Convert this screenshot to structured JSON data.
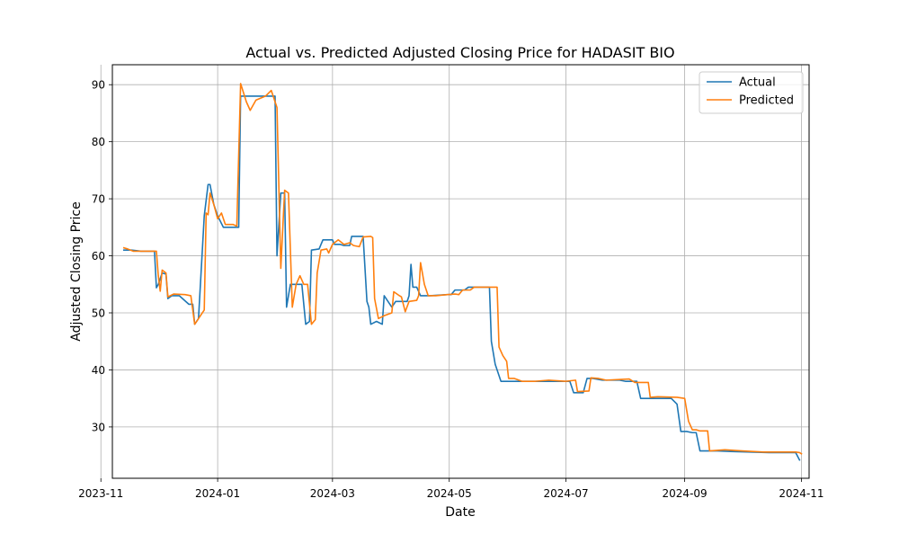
{
  "chart_data": {
    "type": "line",
    "title": "Actual vs. Predicted Adjusted Closing Price for HADASIT BIO",
    "xlabel": "Date",
    "ylabel": "Adjusted Closing Price",
    "xlim": [
      "2023-11-07",
      "2024-11-05"
    ],
    "ylim": [
      21,
      93.5
    ],
    "x_ticks": [
      "2023-11",
      "2024-01",
      "2024-03",
      "2024-05",
      "2024-07",
      "2024-09",
      "2024-11"
    ],
    "y_ticks": [
      30,
      40,
      50,
      60,
      70,
      80,
      90
    ],
    "grid": true,
    "legend_position": "top-right",
    "series": [
      {
        "name": "Actual",
        "color": "#1f77b4",
        "points": [
          [
            "2023-11-13",
            61.0
          ],
          [
            "2023-11-17",
            61.0
          ],
          [
            "2023-11-22",
            60.8
          ],
          [
            "2023-11-29",
            60.8
          ],
          [
            "2023-11-30",
            54.4
          ],
          [
            "2023-12-01",
            55.0
          ],
          [
            "2023-12-03",
            57.0
          ],
          [
            "2023-12-05",
            56.8
          ],
          [
            "2023-12-06",
            52.5
          ],
          [
            "2023-12-08",
            53.0
          ],
          [
            "2023-12-12",
            53.0
          ],
          [
            "2023-12-17",
            51.5
          ],
          [
            "2023-12-19",
            51.5
          ],
          [
            "2023-12-20",
            48.0
          ],
          [
            "2023-12-22",
            49.0
          ],
          [
            "2023-12-25",
            67.0
          ],
          [
            "2023-12-27",
            72.5
          ],
          [
            "2023-12-28",
            72.5
          ],
          [
            "2023-12-30",
            69.0
          ],
          [
            "2024-01-01",
            67.0
          ],
          [
            "2024-01-04",
            65.0
          ],
          [
            "2024-01-12",
            65.0
          ],
          [
            "2024-01-13",
            88.0
          ],
          [
            "2024-01-31",
            88.0
          ],
          [
            "2024-02-01",
            60.0
          ],
          [
            "2024-02-03",
            71.0
          ],
          [
            "2024-02-05",
            71.0
          ],
          [
            "2024-02-06",
            51.0
          ],
          [
            "2024-02-08",
            55.0
          ],
          [
            "2024-02-10",
            55.0
          ],
          [
            "2024-02-14",
            55.0
          ],
          [
            "2024-02-16",
            48.0
          ],
          [
            "2024-02-18",
            48.5
          ],
          [
            "2024-02-19",
            61.0
          ],
          [
            "2024-02-23",
            61.2
          ],
          [
            "2024-02-25",
            62.8
          ],
          [
            "2024-03-01",
            62.8
          ],
          [
            "2024-03-02",
            62.0
          ],
          [
            "2024-03-05",
            62.0
          ],
          [
            "2024-03-07",
            61.8
          ],
          [
            "2024-03-10",
            61.8
          ],
          [
            "2024-03-11",
            63.4
          ],
          [
            "2024-03-17",
            63.4
          ],
          [
            "2024-03-19",
            52.0
          ],
          [
            "2024-03-20",
            51.0
          ],
          [
            "2024-03-21",
            48.0
          ],
          [
            "2024-03-24",
            48.5
          ],
          [
            "2024-03-27",
            48.0
          ],
          [
            "2024-03-28",
            53.0
          ],
          [
            "2024-04-01",
            51.0
          ],
          [
            "2024-04-03",
            52.0
          ],
          [
            "2024-04-09",
            52.0
          ],
          [
            "2024-04-10",
            53.0
          ],
          [
            "2024-04-11",
            58.5
          ],
          [
            "2024-04-12",
            54.5
          ],
          [
            "2024-04-14",
            54.5
          ],
          [
            "2024-04-16",
            53.0
          ],
          [
            "2024-04-21",
            53.0
          ],
          [
            "2024-04-30",
            53.2
          ],
          [
            "2024-05-02",
            53.2
          ],
          [
            "2024-05-04",
            54.0
          ],
          [
            "2024-05-09",
            54.0
          ],
          [
            "2024-05-11",
            54.5
          ],
          [
            "2024-05-22",
            54.5
          ],
          [
            "2024-05-23",
            45.0
          ],
          [
            "2024-05-25",
            41.0
          ],
          [
            "2024-05-28",
            38.0
          ],
          [
            "2024-06-02",
            38.0
          ],
          [
            "2024-06-07",
            38.0
          ],
          [
            "2024-06-15",
            38.0
          ],
          [
            "2024-06-30",
            38.0
          ],
          [
            "2024-07-03",
            38.0
          ],
          [
            "2024-07-05",
            36.0
          ],
          [
            "2024-07-10",
            36.0
          ],
          [
            "2024-07-12",
            38.5
          ],
          [
            "2024-07-15",
            38.5
          ],
          [
            "2024-07-20",
            38.2
          ],
          [
            "2024-07-29",
            38.2
          ],
          [
            "2024-08-01",
            38.0
          ],
          [
            "2024-08-07",
            38.0
          ],
          [
            "2024-08-09",
            35.0
          ],
          [
            "2024-08-25",
            35.0
          ],
          [
            "2024-08-28",
            34.0
          ],
          [
            "2024-08-30",
            29.2
          ],
          [
            "2024-09-02",
            29.2
          ],
          [
            "2024-09-05",
            29.0
          ],
          [
            "2024-09-07",
            29.0
          ],
          [
            "2024-09-09",
            25.8
          ],
          [
            "2024-09-18",
            25.8
          ],
          [
            "2024-09-25",
            25.7
          ],
          [
            "2024-10-15",
            25.5
          ],
          [
            "2024-10-29",
            25.5
          ],
          [
            "2024-10-31",
            24.2
          ]
        ]
      },
      {
        "name": "Predicted",
        "color": "#ff7f0e",
        "points": [
          [
            "2023-11-13",
            61.4
          ],
          [
            "2023-11-15",
            61.2
          ],
          [
            "2023-11-18",
            60.8
          ],
          [
            "2023-11-24",
            60.8
          ],
          [
            "2023-11-30",
            60.8
          ],
          [
            "2023-12-01",
            56.5
          ],
          [
            "2023-12-02",
            53.8
          ],
          [
            "2023-12-03",
            57.5
          ],
          [
            "2023-12-05",
            57.0
          ],
          [
            "2023-12-06",
            52.8
          ],
          [
            "2023-12-09",
            53.3
          ],
          [
            "2023-12-15",
            53.2
          ],
          [
            "2023-12-18",
            53.0
          ],
          [
            "2023-12-20",
            48.0
          ],
          [
            "2023-12-21",
            48.5
          ],
          [
            "2023-12-25",
            50.5
          ],
          [
            "2023-12-26",
            67.5
          ],
          [
            "2023-12-27",
            67.2
          ],
          [
            "2023-12-28",
            71.0
          ],
          [
            "2023-12-30",
            69.0
          ],
          [
            "2024-01-01",
            66.5
          ],
          [
            "2024-01-03",
            67.5
          ],
          [
            "2024-01-05",
            65.5
          ],
          [
            "2024-01-09",
            65.5
          ],
          [
            "2024-01-11",
            65.2
          ],
          [
            "2024-01-13",
            90.2
          ],
          [
            "2024-01-16",
            87.0
          ],
          [
            "2024-01-18",
            85.5
          ],
          [
            "2024-01-21",
            87.3
          ],
          [
            "2024-01-26",
            88.0
          ],
          [
            "2024-01-29",
            89.0
          ],
          [
            "2024-02-01",
            86.0
          ],
          [
            "2024-02-03",
            57.8
          ],
          [
            "2024-02-05",
            71.5
          ],
          [
            "2024-02-07",
            71.0
          ],
          [
            "2024-02-09",
            51.0
          ],
          [
            "2024-02-11",
            55.0
          ],
          [
            "2024-02-13",
            56.5
          ],
          [
            "2024-02-15",
            55.0
          ],
          [
            "2024-02-17",
            55.0
          ],
          [
            "2024-02-19",
            48.0
          ],
          [
            "2024-02-21",
            48.8
          ],
          [
            "2024-02-22",
            57.0
          ],
          [
            "2024-02-24",
            61.0
          ],
          [
            "2024-02-27",
            61.2
          ],
          [
            "2024-02-28",
            60.5
          ],
          [
            "2024-03-01",
            62.0
          ],
          [
            "2024-03-04",
            62.8
          ],
          [
            "2024-03-07",
            62.0
          ],
          [
            "2024-03-10",
            62.3
          ],
          [
            "2024-03-12",
            61.8
          ],
          [
            "2024-03-15",
            61.6
          ],
          [
            "2024-03-17",
            63.3
          ],
          [
            "2024-03-21",
            63.4
          ],
          [
            "2024-03-22",
            63.2
          ],
          [
            "2024-03-23",
            52.5
          ],
          [
            "2024-03-25",
            49.0
          ],
          [
            "2024-03-28",
            49.5
          ],
          [
            "2024-04-01",
            50.0
          ],
          [
            "2024-04-02",
            53.7
          ],
          [
            "2024-04-05",
            53.0
          ],
          [
            "2024-04-06",
            52.8
          ],
          [
            "2024-04-08",
            50.2
          ],
          [
            "2024-04-10",
            52.0
          ],
          [
            "2024-04-14",
            52.2
          ],
          [
            "2024-04-15",
            53.0
          ],
          [
            "2024-04-16",
            58.8
          ],
          [
            "2024-04-18",
            55.0
          ],
          [
            "2024-04-20",
            53.0
          ],
          [
            "2024-04-24",
            53.0
          ],
          [
            "2024-04-30",
            53.2
          ],
          [
            "2024-05-04",
            53.3
          ],
          [
            "2024-05-06",
            53.2
          ],
          [
            "2024-05-08",
            54.0
          ],
          [
            "2024-05-12",
            54.0
          ],
          [
            "2024-05-14",
            54.5
          ],
          [
            "2024-05-19",
            54.5
          ],
          [
            "2024-05-26",
            54.5
          ],
          [
            "2024-05-27",
            44.0
          ],
          [
            "2024-05-29",
            42.5
          ],
          [
            "2024-05-31",
            41.5
          ],
          [
            "2024-06-01",
            38.5
          ],
          [
            "2024-06-04",
            38.5
          ],
          [
            "2024-06-08",
            38.0
          ],
          [
            "2024-06-15",
            38.0
          ],
          [
            "2024-06-22",
            38.2
          ],
          [
            "2024-07-01",
            38.0
          ],
          [
            "2024-07-06",
            38.2
          ],
          [
            "2024-07-07",
            36.2
          ],
          [
            "2024-07-13",
            36.3
          ],
          [
            "2024-07-14",
            38.6
          ],
          [
            "2024-07-18",
            38.5
          ],
          [
            "2024-07-22",
            38.2
          ],
          [
            "2024-08-03",
            38.4
          ],
          [
            "2024-08-06",
            37.8
          ],
          [
            "2024-08-13",
            37.8
          ],
          [
            "2024-08-14",
            35.2
          ],
          [
            "2024-08-18",
            35.3
          ],
          [
            "2024-08-28",
            35.2
          ],
          [
            "2024-09-01",
            35.0
          ],
          [
            "2024-09-03",
            31.0
          ],
          [
            "2024-09-05",
            29.5
          ],
          [
            "2024-09-07",
            29.5
          ],
          [
            "2024-09-09",
            29.3
          ],
          [
            "2024-09-13",
            29.3
          ],
          [
            "2024-09-14",
            25.8
          ],
          [
            "2024-09-22",
            26.0
          ],
          [
            "2024-10-01",
            25.8
          ],
          [
            "2024-10-12",
            25.6
          ],
          [
            "2024-10-20",
            25.6
          ],
          [
            "2024-10-29",
            25.6
          ],
          [
            "2024-10-31",
            25.5
          ],
          [
            "2024-11-01",
            25.3
          ]
        ]
      }
    ]
  }
}
